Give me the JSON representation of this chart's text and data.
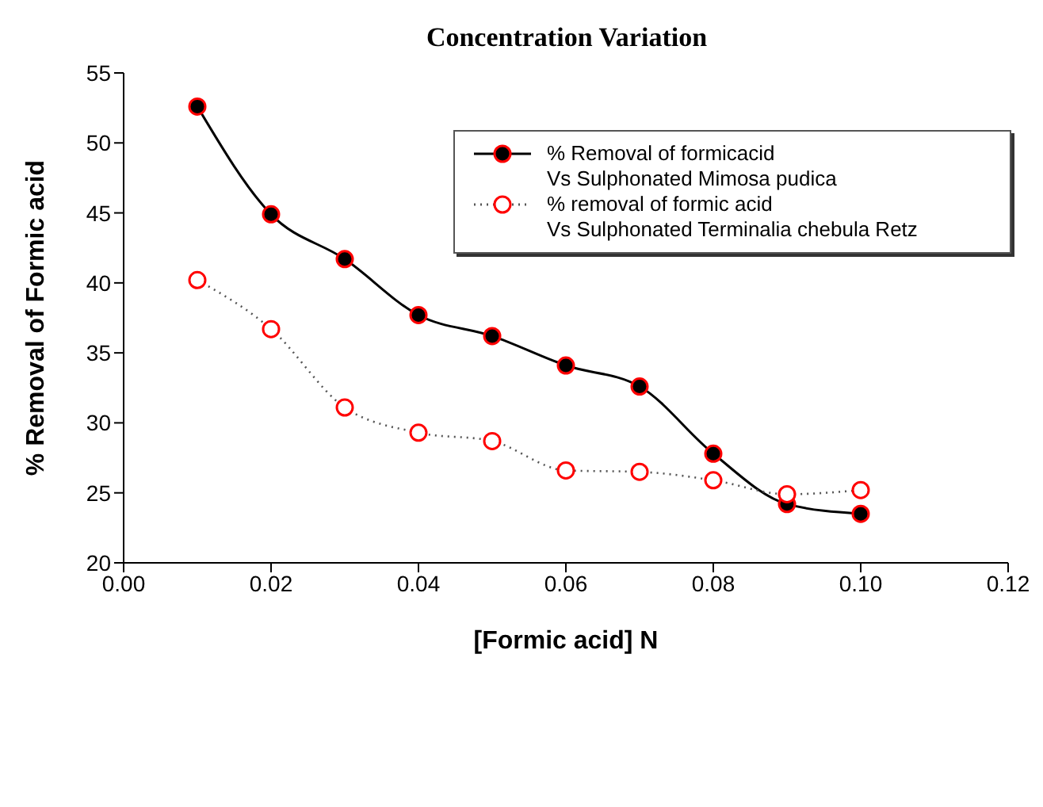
{
  "chart_data": {
    "type": "line",
    "title": "Concentration Variation",
    "xlabel": "[Formic acid] N",
    "ylabel": "% Removal of Formic acid",
    "x": [
      0.01,
      0.02,
      0.03,
      0.04,
      0.05,
      0.06,
      0.07,
      0.08,
      0.09,
      0.1
    ],
    "series": [
      {
        "name": "% Removal of formicacid\nVs Sulphonated Mimosa pudica",
        "color": "#000000",
        "line_style": "solid",
        "values": [
          52.6,
          44.9,
          41.7,
          37.7,
          36.2,
          34.1,
          32.6,
          27.8,
          24.2,
          23.5
        ]
      },
      {
        "name": "% removal of formic acid\nVs Sulphonated Terminalia chebula Retz",
        "color": "#ff0000",
        "line_style": "dotted",
        "values": [
          40.2,
          36.7,
          31.1,
          29.3,
          28.7,
          26.6,
          26.5,
          25.9,
          24.9,
          25.2
        ]
      }
    ],
    "xlim": [
      0,
      0.12
    ],
    "xticks": [
      {
        "value": 0,
        "label": "0.00"
      },
      {
        "value": 0.02,
        "label": "0.02"
      },
      {
        "value": 0.04,
        "label": "0.04"
      },
      {
        "value": 0.06,
        "label": "0.06"
      },
      {
        "value": 0.08,
        "label": "0.08"
      },
      {
        "value": 0.1,
        "label": "0.10"
      },
      {
        "value": 0.12,
        "label": "0.12"
      }
    ],
    "ylim": [
      20,
      55
    ],
    "yticks": [
      20,
      25,
      30,
      35,
      40,
      45,
      50,
      55
    ],
    "grid": false,
    "legend": "top right",
    "marker": "circle"
  }
}
